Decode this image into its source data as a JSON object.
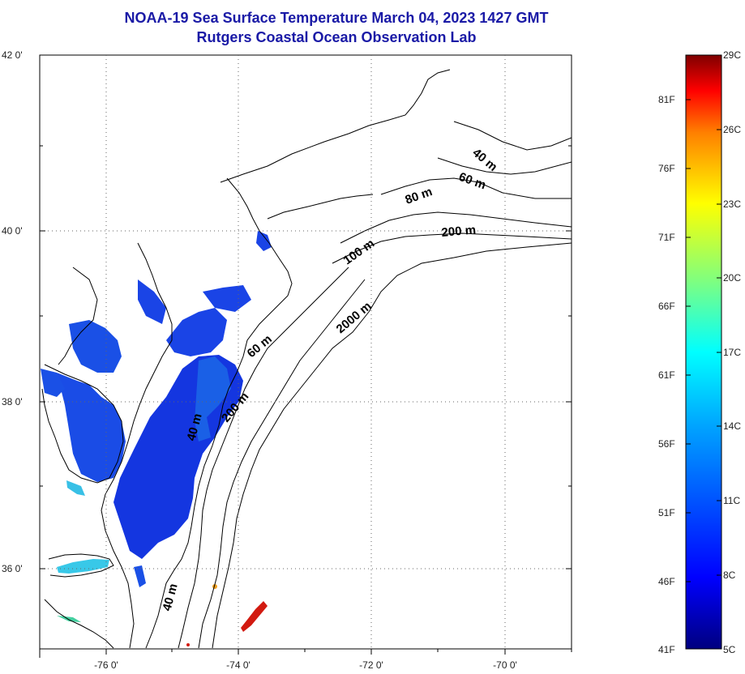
{
  "title_line1": "NOAA-19 Sea Surface Temperature March 04, 2023 1427 GMT",
  "title_line2": "Rutgers Coastal Ocean Observation Lab",
  "lat_labels": [
    "42 0'",
    "40 0'",
    "38 0'",
    "36 0'"
  ],
  "lon_labels": [
    "-76 0'",
    "-74 0'",
    "-72 0'",
    "-70 0'"
  ],
  "contour_labels": [
    "40 m",
    "60 m",
    "80 m",
    "200 m",
    "100 m",
    "2000 m",
    "60 m",
    "200 m",
    "40 m",
    "40 m"
  ],
  "colorbar": {
    "fahrenheit": [
      "81F",
      "76F",
      "71F",
      "66F",
      "61F",
      "56F",
      "51F",
      "46F",
      "41F"
    ],
    "celsius": [
      "29C",
      "26C",
      "23C",
      "20C",
      "17C",
      "14C",
      "11C",
      "8C",
      "5C"
    ],
    "range_c": [
      5,
      29
    ],
    "gradient": [
      "#00007f",
      "#0000ff",
      "#007fff",
      "#00ffff",
      "#7fff7f",
      "#ffff00",
      "#ff7f00",
      "#ff0000",
      "#7f0000"
    ]
  },
  "map_extent": {
    "lon": [
      -77,
      -69
    ],
    "lat": [
      35,
      42
    ]
  },
  "colors": {
    "title": "#1a1aa6",
    "sst_main": "#1436e0",
    "sst_nearshore": "#1a60e6",
    "sst_sound": "#38c8e8",
    "sst_warm": "#d21a10"
  }
}
